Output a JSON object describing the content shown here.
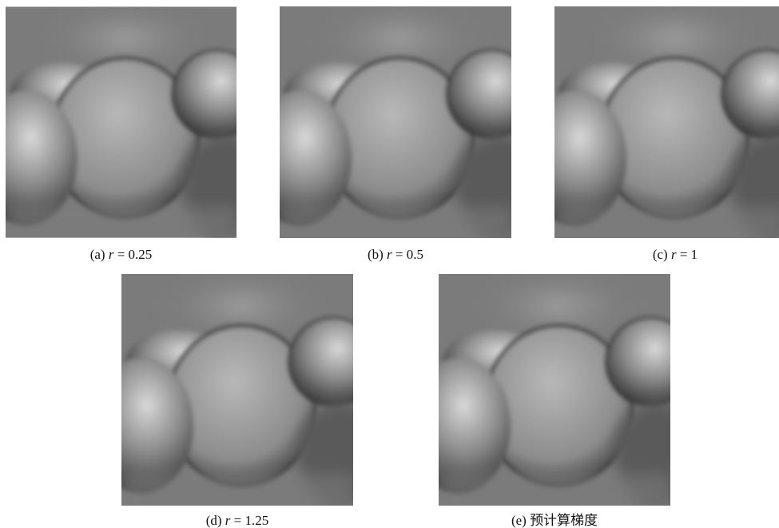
{
  "panels": [
    {
      "tag": "(a)",
      "var": "r",
      "eq": "= 0.25"
    },
    {
      "tag": "(b)",
      "var": "r",
      "eq": "= 0.5"
    },
    {
      "tag": "(c)",
      "var": "r",
      "eq": "= 1"
    },
    {
      "tag": "(d)",
      "var": "r",
      "eq": "= 1.25"
    },
    {
      "tag": "(e)",
      "text": "预计算梯度"
    }
  ]
}
